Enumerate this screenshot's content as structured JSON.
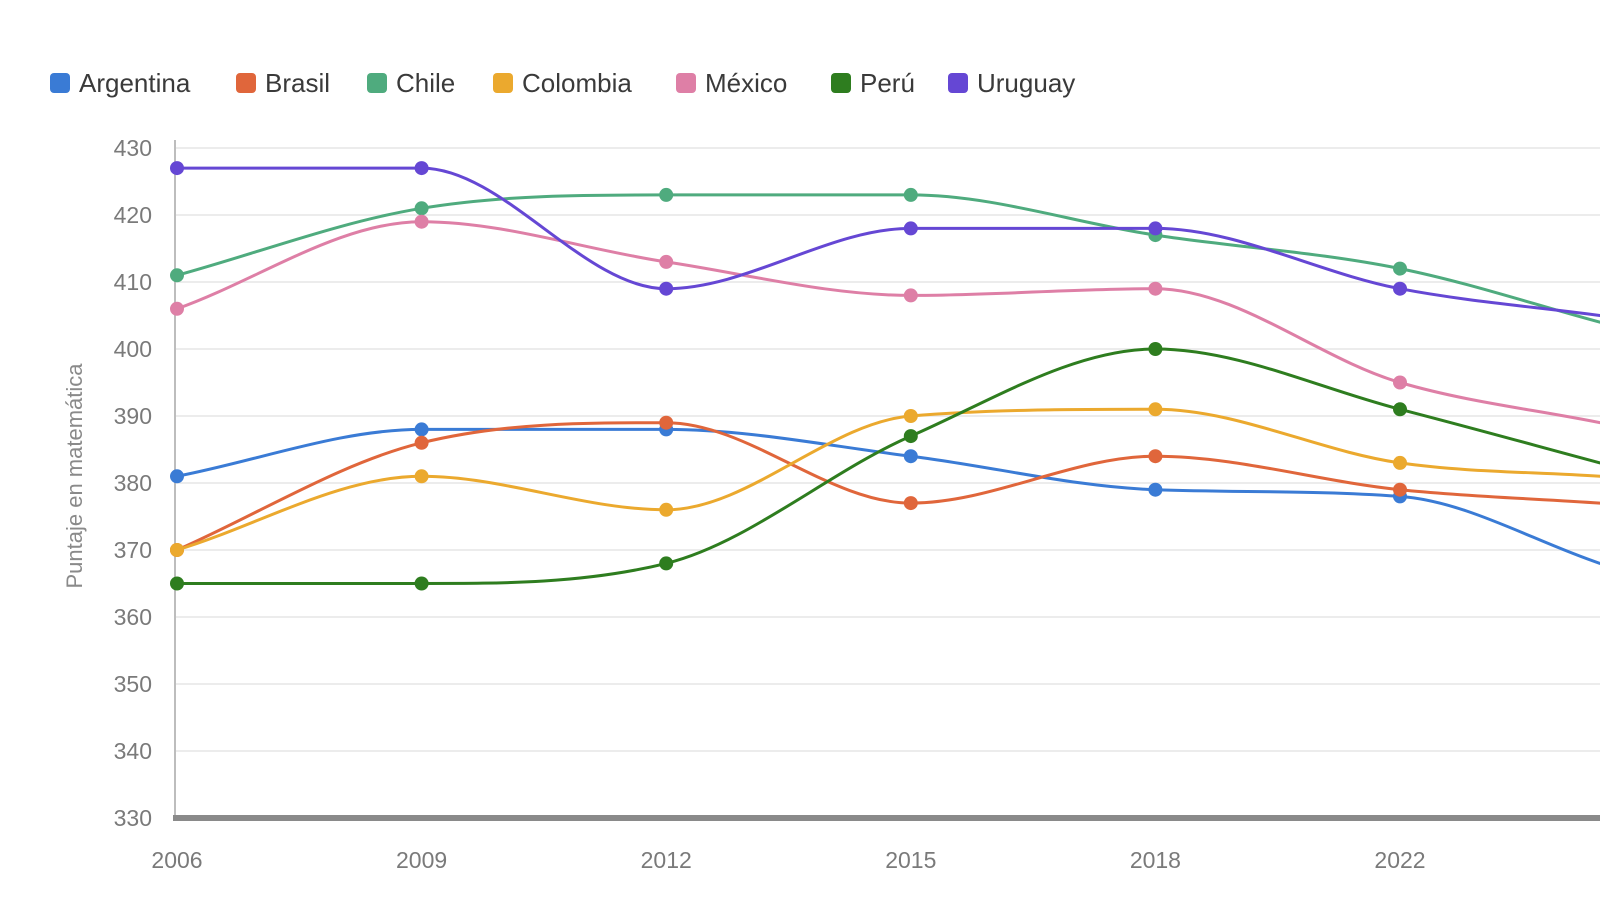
{
  "chart_data": {
    "type": "line",
    "title": "",
    "xlabel": "",
    "ylabel": "Puntaje en matemática",
    "x": [
      "2006",
      "2009",
      "2012",
      "2015",
      "2018",
      "2022"
    ],
    "ylim": [
      330,
      430
    ],
    "yticks": [
      330,
      340,
      350,
      360,
      370,
      380,
      390,
      400,
      410,
      420,
      430
    ],
    "grid": true,
    "legend_position": "top-left",
    "series": [
      {
        "name": "Argentina",
        "color": "#3a7bd5",
        "values": [
          381,
          388,
          388,
          384,
          379,
          378
        ],
        "trail": 368
      },
      {
        "name": "Brasil",
        "color": "#e0663b",
        "values": [
          370,
          386,
          389,
          377,
          384,
          379
        ],
        "trail": 377
      },
      {
        "name": "Chile",
        "color": "#4fab7e",
        "values": [
          411,
          421,
          423,
          423,
          417,
          412
        ],
        "trail": 404
      },
      {
        "name": "Colombia",
        "color": "#eba92e",
        "values": [
          370,
          381,
          376,
          390,
          391,
          383
        ],
        "trail": 381
      },
      {
        "name": "México",
        "color": "#de7fa6",
        "values": [
          406,
          419,
          413,
          408,
          409,
          395
        ],
        "trail": 389
      },
      {
        "name": "Perú",
        "color": "#2e7d1f",
        "values": [
          365,
          365,
          368,
          387,
          400,
          391
        ],
        "trail": 383
      },
      {
        "name": "Uruguay",
        "color": "#6547d4",
        "values": [
          427,
          427,
          409,
          418,
          418,
          409
        ],
        "trail": 405
      }
    ]
  }
}
